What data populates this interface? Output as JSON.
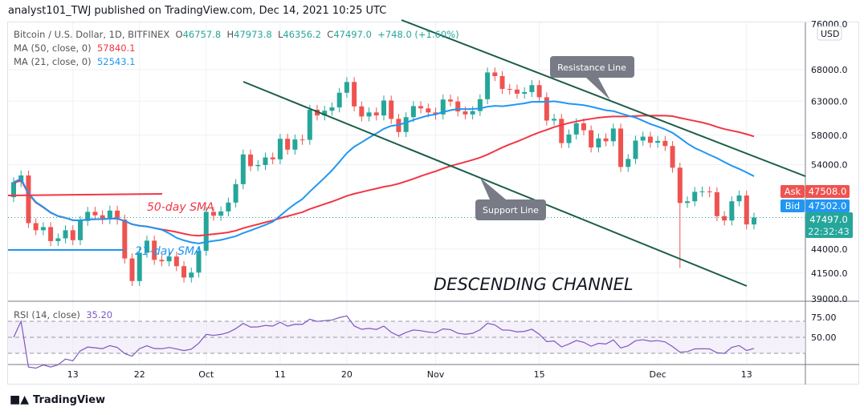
{
  "header": {
    "published": "analyst101_TWJ published on TradingView.com, Dec 14, 2021 10:25 UTC"
  },
  "legend": {
    "symbol": "Bitcoin / U.S. Dollar, 1D, BITFINEX",
    "o_label": "O",
    "o": "46757.8",
    "h_label": "H",
    "h": "47973.8",
    "l_label": "L",
    "l": "46356.2",
    "c_label": "C",
    "c": "47497.0",
    "change": "+748.0 (+1.60%)",
    "ma50_label": "MA (50, close, 0)",
    "ma50": "57840.1",
    "ma21_label": "MA (21, close, 0)",
    "ma21": "52543.1",
    "rsi_label": "RSI (14, close)",
    "rsi": "35.20"
  },
  "axis": {
    "currency": "USD",
    "price_ticks": [
      "76000.0",
      "68000.0",
      "63000.0",
      "58000.0",
      "54000.0",
      "44000.0",
      "41500.0",
      "39000.0"
    ],
    "rsi_ticks": [
      "75.00",
      "50.00"
    ],
    "ask_label": "Ask",
    "ask": "47508.0",
    "bid_label": "Bid",
    "bid": "47502.0",
    "last": "47497.0",
    "countdown": "22:32:43"
  },
  "annotations": {
    "resistance": "Resistance Line",
    "support": "Support Line",
    "sma50": "50-day SMA",
    "sma21": "21-day SMA",
    "channel": "DESCENDING CHANNEL"
  },
  "logo": "TradingView",
  "colors": {
    "up": "#26a69a",
    "down": "#ef5350",
    "ma50": "#f23645",
    "ma21": "#2196f3",
    "channel": "#1b5e48",
    "rsi": "#7e57c2"
  },
  "chart_data": {
    "type": "candlestick",
    "scale": "log",
    "start_date": "2021-09-05",
    "x_ticks": [
      {
        "label": "13",
        "date": "2021-09-13"
      },
      {
        "label": "22",
        "date": "2021-09-22"
      },
      {
        "label": "Oct",
        "date": "2021-10-01"
      },
      {
        "label": "11",
        "date": "2021-10-11"
      },
      {
        "label": "20",
        "date": "2021-10-20"
      },
      {
        "label": "Nov",
        "date": "2021-11-01"
      },
      {
        "label": "15",
        "date": "2021-11-15"
      },
      {
        "label": "Dec",
        "date": "2021-12-01"
      },
      {
        "label": "13",
        "date": "2021-12-13"
      }
    ],
    "ylim": [
      39000,
      76000
    ],
    "first_open": 49900,
    "closes": [
      51750,
      52600,
      46850,
      46050,
      46400,
      44850,
      45150,
      46050,
      44950,
      47100,
      48150,
      47750,
      47300,
      48300,
      47250,
      43000,
      40700,
      43600,
      44900,
      42850,
      42700,
      43200,
      42200,
      41050,
      41550,
      43800,
      48150,
      47700,
      48200,
      49250,
      51500,
      55350,
      53800,
      53950,
      54950,
      54700,
      57500,
      56000,
      57400,
      57350,
      61700,
      60850,
      61550,
      62050,
      64300,
      66000,
      62200,
      60700,
      61300,
      60850,
      63100,
      60350,
      58450,
      60600,
      62250,
      61900,
      61300,
      61000,
      63250,
      62950,
      61450,
      61000,
      61500,
      63300,
      67550,
      66950,
      64900,
      64800,
      64150,
      64400,
      65500,
      63600,
      60100,
      60350,
      56900,
      58100,
      59700,
      58700,
      56300,
      57550,
      57150,
      58950,
      53700,
      54750,
      57250,
      57800,
      56950,
      57200,
      56500,
      53600,
      49200,
      49400,
      50550,
      50600,
      50500,
      47650,
      47150,
      49400,
      50100,
      46700,
      47497
    ],
    "notable_lows": [
      {
        "date": "2021-12-04",
        "low": 42000
      }
    ],
    "rsi_range": [
      0,
      100
    ]
  }
}
